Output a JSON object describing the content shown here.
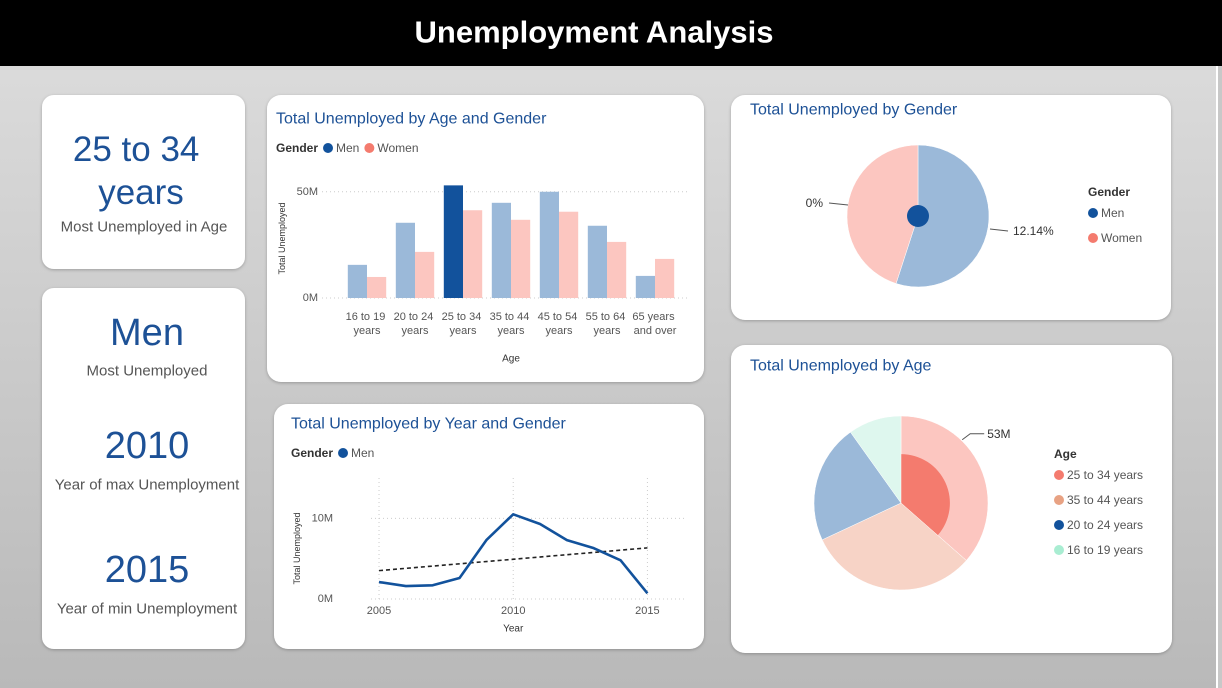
{
  "header": {
    "title": "Unemployment Analysis"
  },
  "cards": [
    {
      "value": "25 to 34 years",
      "label": "Most Unemployed in Age"
    },
    {
      "value": "Men",
      "label": "Most Unemployed"
    },
    {
      "value": "2010",
      "label": "Year of max Unemployment"
    },
    {
      "value": "2015",
      "label": "Year of min Unemployment"
    }
  ],
  "chart_data": [
    {
      "type": "bar",
      "title": "Total Unemployed by Age and Gender",
      "legend_title": "Gender",
      "x_label": "Age",
      "y_label": "Total Unemployed",
      "categories": [
        "16 to 19 years",
        "20 to 24 years",
        "25 to 34 years",
        "35 to 44 years",
        "45 to 54 years",
        "55 to 64 years",
        "65 years and over"
      ],
      "series": [
        {
          "name": "Men",
          "color": "#12529c",
          "faded_color": "#9bb9d9",
          "values": [
            15600000,
            35400000,
            53000000,
            44800000,
            50000000,
            34000000,
            10400000
          ]
        },
        {
          "name": "Women",
          "color": "#f47b6e",
          "faded_color": "#fcc6c0",
          "values": [
            9900000,
            21700000,
            41300000,
            36800000,
            40600000,
            26400000,
            18400000
          ]
        }
      ],
      "selected": {
        "series": 0,
        "category": 2
      },
      "ylim": [
        0,
        56000000
      ],
      "yticks": [
        {
          "value": 0,
          "label": "0M"
        },
        {
          "value": 50000000,
          "label": "50M"
        }
      ],
      "grid": true
    },
    {
      "type": "line",
      "title": "Total Unemployed by Year and Gender",
      "legend_title": "Gender",
      "x_label": "Year",
      "y_label": "Total Unemployed",
      "x": [
        2005,
        2006,
        2007,
        2008,
        2009,
        2010,
        2011,
        2012,
        2013,
        2014,
        2015
      ],
      "series": [
        {
          "name": "Men",
          "color": "#12529c",
          "values": [
            2100000,
            1600000,
            1700000,
            2600000,
            7300000,
            10500000,
            9300000,
            7300000,
            6300000,
            4800000,
            700000
          ]
        }
      ],
      "xlim": [
        2004.85,
        2016.4
      ],
      "xticks": [
        2005,
        2010,
        2015
      ],
      "ylim": [
        0,
        15000000
      ],
      "yticks": [
        {
          "value": 0,
          "label": "0M"
        },
        {
          "value": 10000000,
          "label": "10M"
        }
      ],
      "grid": true,
      "trend_line": true
    },
    {
      "type": "pie",
      "title": "Total Unemployed by Gender",
      "legend_title": "Gender",
      "categories": [
        "Men",
        "Women"
      ],
      "values": [
        55,
        45
      ],
      "colors": [
        "#12529c",
        "#f47b6e"
      ],
      "faded_colors": [
        "#9bb9d9",
        "#fcc6c0"
      ],
      "annotations": [
        "12.14%",
        "0%"
      ]
    },
    {
      "type": "pie",
      "title": "Total Unemployed by Age",
      "legend_title": "Age",
      "categories": [
        "25 to 34 years",
        "35 to 44 years",
        "20 to 24 years",
        "16 to 19 years"
      ],
      "values": [
        94300000,
        81600000,
        57100000,
        25500000
      ],
      "highlight_values": [
        53000000,
        null,
        null,
        null
      ],
      "highlight_value_labels": [
        "53M",
        null,
        null,
        null
      ],
      "colors": [
        "#f47b6e",
        "#e8a283",
        "#12529c",
        "#a9edd2"
      ],
      "faded_colors": [
        "#fcc6c0",
        "#f7d3c6",
        "#9bb9d9",
        "#def7ee"
      ]
    }
  ]
}
